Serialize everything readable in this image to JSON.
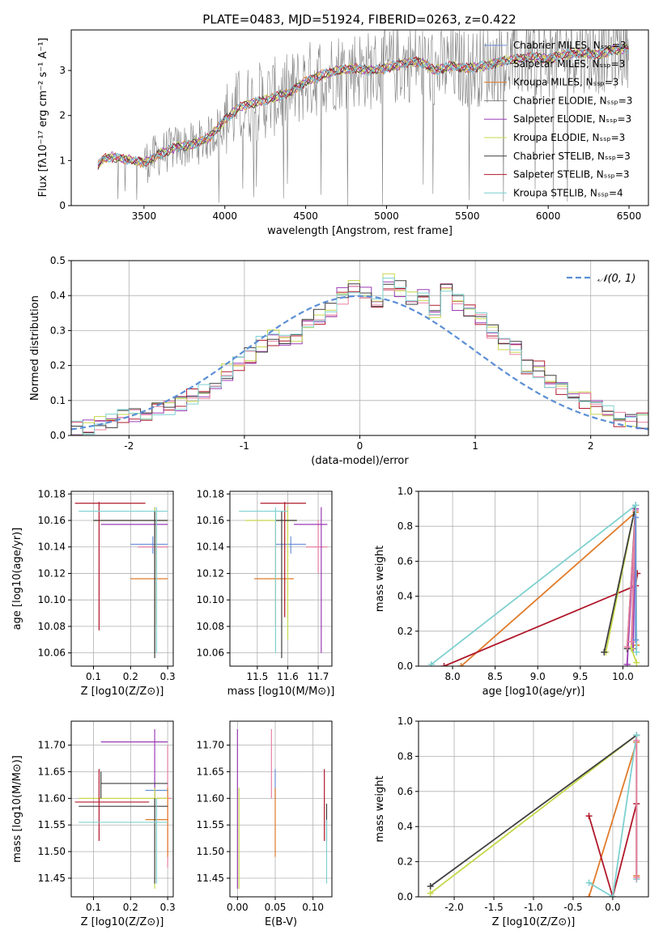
{
  "title": "PLATE=0483, MJD=51924, FIBERID=0263, z=0.422",
  "colors": {
    "Chabrier MILES": "#6a90d8",
    "Salpeter MILES": "#9a9a9a",
    "Kroupa MILES": "#e07b2a",
    "Chabrier ELODIE": "#808080",
    "Salpeter ELODIE": "#9b3bb5",
    "Kroupa ELODIE": "#c6d84a",
    "Chabrier STELIB": "#3f3f3f",
    "Salpeter STELIB": "#b0182a",
    "Kroupa STELIB": "#7fd0d0",
    "pink": "#e880a0",
    "gaussian": "#5b8fd6"
  },
  "chart_data": [
    {
      "type": "line",
      "title": "PLATE=0483, MJD=51924, FIBERID=0263, z=0.422",
      "xlabel": "wavelength [Angstrom, rest frame]",
      "ylabel": "Flux [f_λ 10^-17 erg cm^-2 s^-1 A^-1]",
      "xlim": [
        3050,
        6620
      ],
      "ylim": [
        0,
        3.9
      ],
      "xticks": [
        3500,
        4000,
        4500,
        5000,
        5500,
        6000,
        6500
      ],
      "yticks": [
        0,
        1,
        2,
        3
      ],
      "legend_position": "top-right",
      "series": [
        {
          "name": "Chabrier MILES, N_SSP=3"
        },
        {
          "name": "Salpetar MILES, N_SSP=3"
        },
        {
          "name": "Kroupa MILES, N_SSP=3"
        },
        {
          "name": "Chabrier ELODIE, N_SSP=3"
        },
        {
          "name": "Salpeter ELODIE, N_SSP=3"
        },
        {
          "name": "Kroupa ELODIE, N_SSP=3"
        },
        {
          "name": "Chabrier STELIB, N_SSP=3"
        },
        {
          "name": "Salpeter STELIB, N_SSP=3"
        },
        {
          "name": "Kroupa STELIB, N_SSP=4"
        }
      ],
      "model_continuum": {
        "x": [
          3200,
          3250,
          3300,
          3400,
          3500,
          3600,
          3700,
          3800,
          3900,
          4000,
          4100,
          4200,
          4300,
          4400,
          4500,
          4600,
          4700,
          4800,
          4900,
          5000,
          5100,
          5200,
          5300,
          5400,
          5500,
          5600,
          5700,
          5800,
          5900,
          6000,
          6100,
          6200,
          6300,
          6400,
          6500
        ],
        "y": [
          0.8,
          1.05,
          1.08,
          1.02,
          0.95,
          1.15,
          1.3,
          1.35,
          1.5,
          1.9,
          2.2,
          2.3,
          2.4,
          2.5,
          2.75,
          2.9,
          3.0,
          3.05,
          3.0,
          3.05,
          3.15,
          3.2,
          3.0,
          3.1,
          3.05,
          3.1,
          3.2,
          3.25,
          3.3,
          3.25,
          3.35,
          3.4,
          3.35,
          3.45,
          3.5
        ]
      }
    },
    {
      "type": "line",
      "xlabel": "(data-model)/error",
      "ylabel": "Normed distribution",
      "xlim": [
        -2.5,
        2.5
      ],
      "ylim": [
        0,
        0.5
      ],
      "xticks": [
        -2,
        -1,
        0,
        1,
        2
      ],
      "yticks": [
        0.0,
        0.1,
        0.2,
        0.3,
        0.4,
        0.5
      ],
      "legend": "𝒩(0, 1)",
      "legend_position": "top-right",
      "bin_edges_start": -2.5,
      "bin_width": 0.1,
      "hist": [
        0.02,
        0.02,
        0.03,
        0.04,
        0.05,
        0.06,
        0.06,
        0.08,
        0.08,
        0.09,
        0.11,
        0.13,
        0.15,
        0.18,
        0.2,
        0.23,
        0.26,
        0.28,
        0.28,
        0.27,
        0.31,
        0.34,
        0.36,
        0.4,
        0.43,
        0.41,
        0.38,
        0.44,
        0.42,
        0.39,
        0.4,
        0.36,
        0.41,
        0.38,
        0.35,
        0.33,
        0.3,
        0.27,
        0.25,
        0.2,
        0.19,
        0.15,
        0.13,
        0.12,
        0.1,
        0.08,
        0.07,
        0.05,
        0.05,
        0.04
      ]
    },
    {
      "type": "scatter",
      "xlabel": "Z [log10(Z/Z⊙)]",
      "ylabel": "age  [log10(age/yr)]",
      "xlim": [
        0.04,
        0.315
      ],
      "ylim": [
        10.05,
        10.182
      ],
      "xticks": [
        0.1,
        0.2,
        0.3
      ],
      "yticks": [
        10.06,
        10.08,
        10.1,
        10.12,
        10.14,
        10.16,
        10.18
      ],
      "points": [
        {
          "x": 0.26,
          "y": 10.142,
          "xerr": [
            0.2,
            0.3
          ],
          "yerr": [
            10.135,
            10.148
          ],
          "c": "Chabrier MILES"
        },
        {
          "x": 0.27,
          "y": 10.14,
          "xerr": [
            0.22,
            0.3
          ],
          "yerr": [
            10.12,
            10.16
          ],
          "c": "pink"
        },
        {
          "x": 0.27,
          "y": 10.116,
          "xerr": [
            0.2,
            0.3
          ],
          "yerr": [
            10.08,
            10.16
          ],
          "c": "Kroupa MILES"
        },
        {
          "x": 0.265,
          "y": 10.157,
          "xerr": [
            0.12,
            0.3
          ],
          "yerr": [
            10.06,
            10.17
          ],
          "c": "Salpeter ELODIE"
        },
        {
          "x": 0.265,
          "y": 10.16,
          "xerr": [
            0.1,
            0.3
          ],
          "yerr": [
            10.06,
            10.17
          ],
          "c": "Kroupa ELODIE"
        },
        {
          "x": 0.265,
          "y": 10.16,
          "xerr": [
            0.1,
            0.3
          ],
          "yerr": [
            10.056,
            10.167
          ],
          "c": "Chabrier STELIB"
        },
        {
          "x": 0.115,
          "y": 10.173,
          "xerr": [
            0.05,
            0.24
          ],
          "yerr": [
            10.077,
            10.174
          ],
          "c": "Salpeter STELIB"
        },
        {
          "x": 0.27,
          "y": 10.167,
          "xerr": [
            0.06,
            0.3
          ],
          "yerr": [
            10.06,
            10.17
          ],
          "c": "Kroupa STELIB"
        }
      ]
    },
    {
      "type": "scatter",
      "xlabel": "mass [log10(M/M⊙)]",
      "ylabel": "",
      "xlim": [
        11.41,
        11.745
      ],
      "ylim": [
        10.05,
        10.182
      ],
      "xticks": [
        11.5,
        11.6,
        11.7
      ],
      "yticks": [
        10.06,
        10.08,
        10.1,
        10.12,
        10.14,
        10.16,
        10.18
      ],
      "points": [
        {
          "x": 11.61,
          "y": 10.142,
          "xerr": [
            11.56,
            11.66
          ],
          "yerr": [
            10.135,
            10.148
          ],
          "c": "Chabrier MILES"
        },
        {
          "x": 11.7,
          "y": 10.14,
          "xerr": [
            11.66,
            11.73
          ],
          "yerr": [
            10.12,
            10.16
          ],
          "c": "pink"
        },
        {
          "x": 11.56,
          "y": 10.116,
          "xerr": [
            11.49,
            11.62
          ],
          "yerr": [
            10.08,
            10.16
          ],
          "c": "Kroupa MILES"
        },
        {
          "x": 11.71,
          "y": 10.157,
          "xerr": [
            11.62,
            11.73
          ],
          "yerr": [
            10.06,
            10.17
          ],
          "c": "Salpeter ELODIE"
        },
        {
          "x": 11.6,
          "y": 10.16,
          "xerr": [
            11.46,
            11.63
          ],
          "yerr": [
            10.07,
            10.17
          ],
          "c": "Kroupa ELODIE"
        },
        {
          "x": 11.58,
          "y": 10.16,
          "xerr": [
            11.56,
            11.63
          ],
          "yerr": [
            10.056,
            10.167
          ],
          "c": "Chabrier STELIB"
        },
        {
          "x": 11.59,
          "y": 10.173,
          "xerr": [
            11.51,
            11.66
          ],
          "yerr": [
            10.087,
            10.174
          ],
          "c": "Salpeter STELIB"
        },
        {
          "x": 11.56,
          "y": 10.167,
          "xerr": [
            11.44,
            11.6
          ],
          "yerr": [
            10.06,
            10.17
          ],
          "c": "Kroupa STELIB"
        }
      ]
    },
    {
      "type": "line",
      "xlabel": "age  [log10(age/yr)]",
      "ylabel": "mass weight",
      "xlim": [
        7.6,
        10.3
      ],
      "ylim": [
        0,
        1
      ],
      "xticks": [
        8.0,
        8.5,
        9.0,
        9.5,
        10.0
      ],
      "yticks": [
        0.0,
        0.2,
        0.4,
        0.6,
        0.8,
        1.0
      ],
      "series": [
        {
          "c": "Kroupa MILES",
          "x": [
            8.1,
            10.15,
            10.16
          ],
          "y": [
            0.0,
            0.88,
            0.12
          ]
        },
        {
          "c": "Salpeter STELIB",
          "x": [
            7.9,
            10.15,
            10.17
          ],
          "y": [
            0.0,
            0.46,
            0.53
          ]
        },
        {
          "c": "Salpeter ELODIE",
          "x": [
            10.05,
            10.15,
            10.12
          ],
          "y": [
            0.01,
            0.9,
            0.1
          ]
        },
        {
          "c": "Kroupa ELODIE",
          "x": [
            9.8,
            10.15,
            10.1,
            10.16
          ],
          "y": [
            0.08,
            0.92,
            0.1,
            0.02
          ]
        },
        {
          "c": "Chabrier STELIB",
          "x": [
            9.78,
            10.15,
            10.05
          ],
          "y": [
            0.08,
            0.92,
            0.1
          ]
        },
        {
          "c": "pink",
          "x": [
            10.05,
            10.15,
            10.1
          ],
          "y": [
            0.11,
            0.89,
            0.14
          ]
        },
        {
          "c": "Kroupa STELIB",
          "x": [
            7.75,
            10.15,
            10.16
          ],
          "y": [
            0.01,
            0.92,
            0.08
          ]
        },
        {
          "c": "Chabrier MILES",
          "x": [
            10.15,
            10.15
          ],
          "y": [
            0.85,
            0.15
          ]
        }
      ]
    },
    {
      "type": "scatter",
      "xlabel": "Z [log10(Z/Z⊙)]",
      "ylabel": "mass [log10(M/M⊙)]",
      "xlim": [
        0.04,
        0.315
      ],
      "ylim": [
        11.415,
        11.745
      ],
      "xticks": [
        0.1,
        0.2,
        0.3
      ],
      "yticks": [
        11.45,
        11.5,
        11.55,
        11.6,
        11.65,
        11.7
      ],
      "points": [
        {
          "x": 0.265,
          "y": 11.615,
          "xerr": [
            0.24,
            0.3
          ],
          "yerr": [
            11.6,
            11.63
          ],
          "c": "Chabrier MILES"
        },
        {
          "x": 0.3,
          "y": 11.6,
          "xerr": [
            0.27,
            0.31
          ],
          "yerr": [
            11.47,
            11.7
          ],
          "c": "pink"
        },
        {
          "x": 0.3,
          "y": 11.56,
          "xerr": [
            0.24,
            0.3
          ],
          "yerr": [
            11.49,
            11.62
          ],
          "c": "Kroupa MILES"
        },
        {
          "x": 0.265,
          "y": 11.706,
          "xerr": [
            0.12,
            0.3
          ],
          "yerr": [
            11.56,
            11.73
          ],
          "c": "Salpeter ELODIE"
        },
        {
          "x": 0.265,
          "y": 11.6,
          "xerr": [
            0.06,
            0.3
          ],
          "yerr": [
            11.43,
            11.62
          ],
          "c": "Kroupa ELODIE"
        },
        {
          "x": 0.265,
          "y": 11.585,
          "xerr": [
            0.06,
            0.3
          ],
          "yerr": [
            11.44,
            11.6
          ],
          "c": "Chabrier STELIB"
        },
        {
          "x": 0.115,
          "y": 11.593,
          "xerr": [
            0.05,
            0.25
          ],
          "yerr": [
            11.52,
            11.655
          ],
          "c": "Salpeter STELIB"
        },
        {
          "x": 0.27,
          "y": 11.555,
          "xerr": [
            0.06,
            0.3
          ],
          "yerr": [
            11.44,
            11.6
          ],
          "c": "Kroupa STELIB"
        },
        {
          "x": 0.12,
          "y": 11.628,
          "xerr": [
            0.12,
            0.3
          ],
          "yerr": [
            11.6,
            11.65
          ],
          "c": "Chabrier STELIB"
        }
      ]
    },
    {
      "type": "scatter",
      "xlabel": "E(B-V)",
      "ylabel": "",
      "xlim": [
        -0.01,
        0.125
      ],
      "ylim": [
        11.415,
        11.745
      ],
      "xticks": [
        0.0,
        0.05,
        0.1
      ],
      "yticks": [
        11.45,
        11.5,
        11.55,
        11.6,
        11.65,
        11.7
      ],
      "points": [
        {
          "x": 0.0,
          "y": 11.62,
          "yerr": [
            11.43,
            11.73
          ],
          "c": "Salpeter ELODIE"
        },
        {
          "x": 0.002,
          "y": 11.55,
          "yerr": [
            11.43,
            11.62
          ],
          "c": "Kroupa ELODIE"
        },
        {
          "x": 0.045,
          "y": 11.65,
          "yerr": [
            11.6,
            11.73
          ],
          "c": "pink"
        },
        {
          "x": 0.05,
          "y": 11.63,
          "yerr": [
            11.6,
            11.655
          ],
          "c": "Chabrier MILES"
        },
        {
          "x": 0.05,
          "y": 11.56,
          "yerr": [
            11.49,
            11.62
          ],
          "c": "Kroupa MILES"
        },
        {
          "x": 0.115,
          "y": 11.58,
          "yerr": [
            11.52,
            11.655
          ],
          "c": "Salpeter STELIB"
        },
        {
          "x": 0.118,
          "y": 11.55,
          "yerr": [
            11.52,
            11.59
          ],
          "c": "Chabrier STELIB"
        },
        {
          "x": 0.118,
          "y": 11.5,
          "yerr": [
            11.44,
            11.56
          ],
          "c": "Kroupa STELIB"
        }
      ]
    },
    {
      "type": "line",
      "xlabel": "Z [log10(Z/Z⊙)]",
      "ylabel": "mass weight",
      "xlim": [
        -2.45,
        0.45
      ],
      "ylim": [
        0,
        1
      ],
      "xticks": [
        -2.0,
        -1.5,
        -1.0,
        -0.5,
        0.0
      ],
      "yticks": [
        0.0,
        0.2,
        0.4,
        0.6,
        0.8,
        1.0
      ],
      "series": [
        {
          "c": "Kroupa ELODIE",
          "x": [
            -2.3,
            0.3
          ],
          "y": [
            0.02,
            0.92
          ]
        },
        {
          "c": "Chabrier STELIB",
          "x": [
            -2.3,
            0.3
          ],
          "y": [
            0.06,
            0.92
          ]
        },
        {
          "c": "Kroupa MILES",
          "x": [
            -0.3,
            0.3,
            0.3
          ],
          "y": [
            0.0,
            0.88,
            0.12
          ]
        },
        {
          "c": "Salpeter STELIB",
          "x": [
            -0.3,
            0.0,
            0.3,
            0.3
          ],
          "y": [
            0.46,
            0.0,
            0.53,
            0.1
          ]
        },
        {
          "c": "Kroupa STELIB",
          "x": [
            -0.3,
            0.0,
            0.3,
            0.3
          ],
          "y": [
            0.08,
            0.0,
            0.92,
            0.1
          ]
        },
        {
          "c": "pink",
          "x": [
            0.3,
            0.3
          ],
          "y": [
            0.89,
            0.11
          ]
        }
      ]
    }
  ]
}
